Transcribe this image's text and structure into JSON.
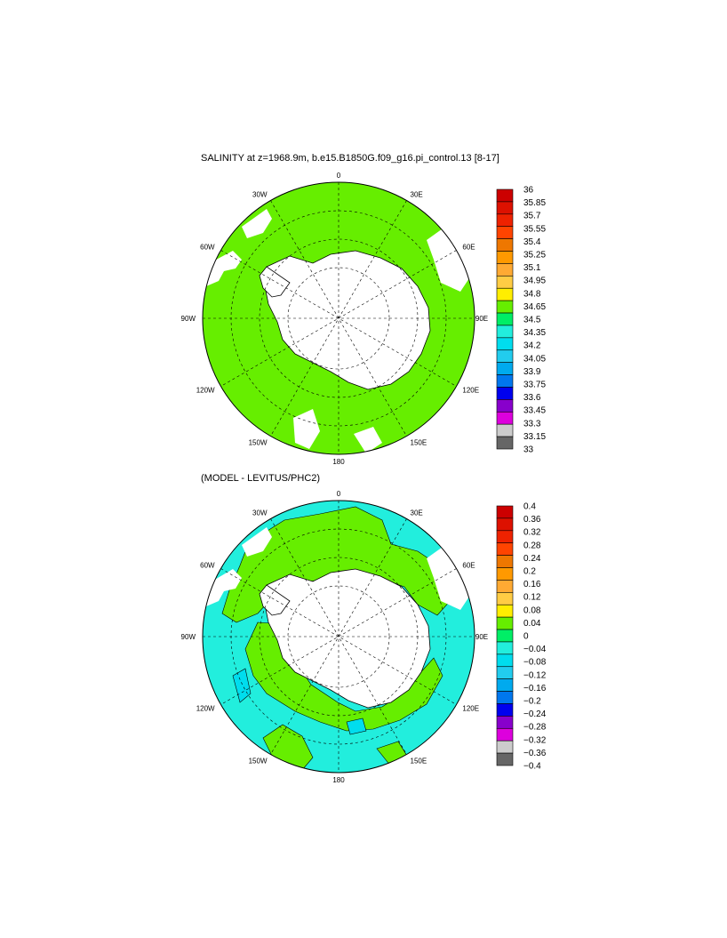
{
  "map1": {
    "title": "SALINITY at z=1968.9m, b.e15.B1850G.f09_g16.pi_control.13 [8-17]",
    "lon_labels": [
      "0",
      "30E",
      "60E",
      "90E",
      "120E",
      "150E",
      "180",
      "150W",
      "120W",
      "90W",
      "60W",
      "30W"
    ],
    "fill_color": "#66ee00",
    "colorbar": {
      "labels": [
        "36",
        "35.85",
        "35.7",
        "35.55",
        "35.4",
        "35.25",
        "35.1",
        "34.95",
        "34.8",
        "34.65",
        "34.5",
        "34.35",
        "34.2",
        "34.05",
        "33.9",
        "33.75",
        "33.6",
        "33.45",
        "33.3",
        "33.15",
        "33"
      ],
      "colors": [
        "#cc0000",
        "#dd1100",
        "#ee2200",
        "#ff4400",
        "#ee7700",
        "#ff9900",
        "#ffaa33",
        "#ffcc44",
        "#ffee00",
        "#66ee00",
        "#00ee66",
        "#22eedd",
        "#00ddee",
        "#22ccee",
        "#00aaee",
        "#0077ee",
        "#0000ee",
        "#8800cc",
        "#dd00dd",
        "#cccccc",
        "#666666"
      ]
    }
  },
  "map2": {
    "title": "(MODEL - LEVITUS/PHC2)",
    "lon_labels": [
      "0",
      "30E",
      "60E",
      "90E",
      "120E",
      "150E",
      "180",
      "150W",
      "120W",
      "90W",
      "60W",
      "30W"
    ],
    "colorbar": {
      "labels": [
        "0.4",
        "0.36",
        "0.32",
        "0.28",
        "0.24",
        "0.2",
        "0.16",
        "0.12",
        "0.08",
        "0.04",
        "0",
        "−0.04",
        "−0.08",
        "−0.12",
        "−0.16",
        "−0.2",
        "−0.24",
        "−0.28",
        "−0.32",
        "−0.36",
        "−0.4"
      ],
      "colors": [
        "#cc0000",
        "#dd1100",
        "#ee2200",
        "#ff4400",
        "#ee7700",
        "#ff9900",
        "#ffaa33",
        "#ffcc44",
        "#ffee00",
        "#66ee00",
        "#00ee66",
        "#22eedd",
        "#00ddee",
        "#22ccee",
        "#00aaee",
        "#0077ee",
        "#0000ee",
        "#8800cc",
        "#dd00dd",
        "#cccccc",
        "#666666"
      ]
    }
  }
}
